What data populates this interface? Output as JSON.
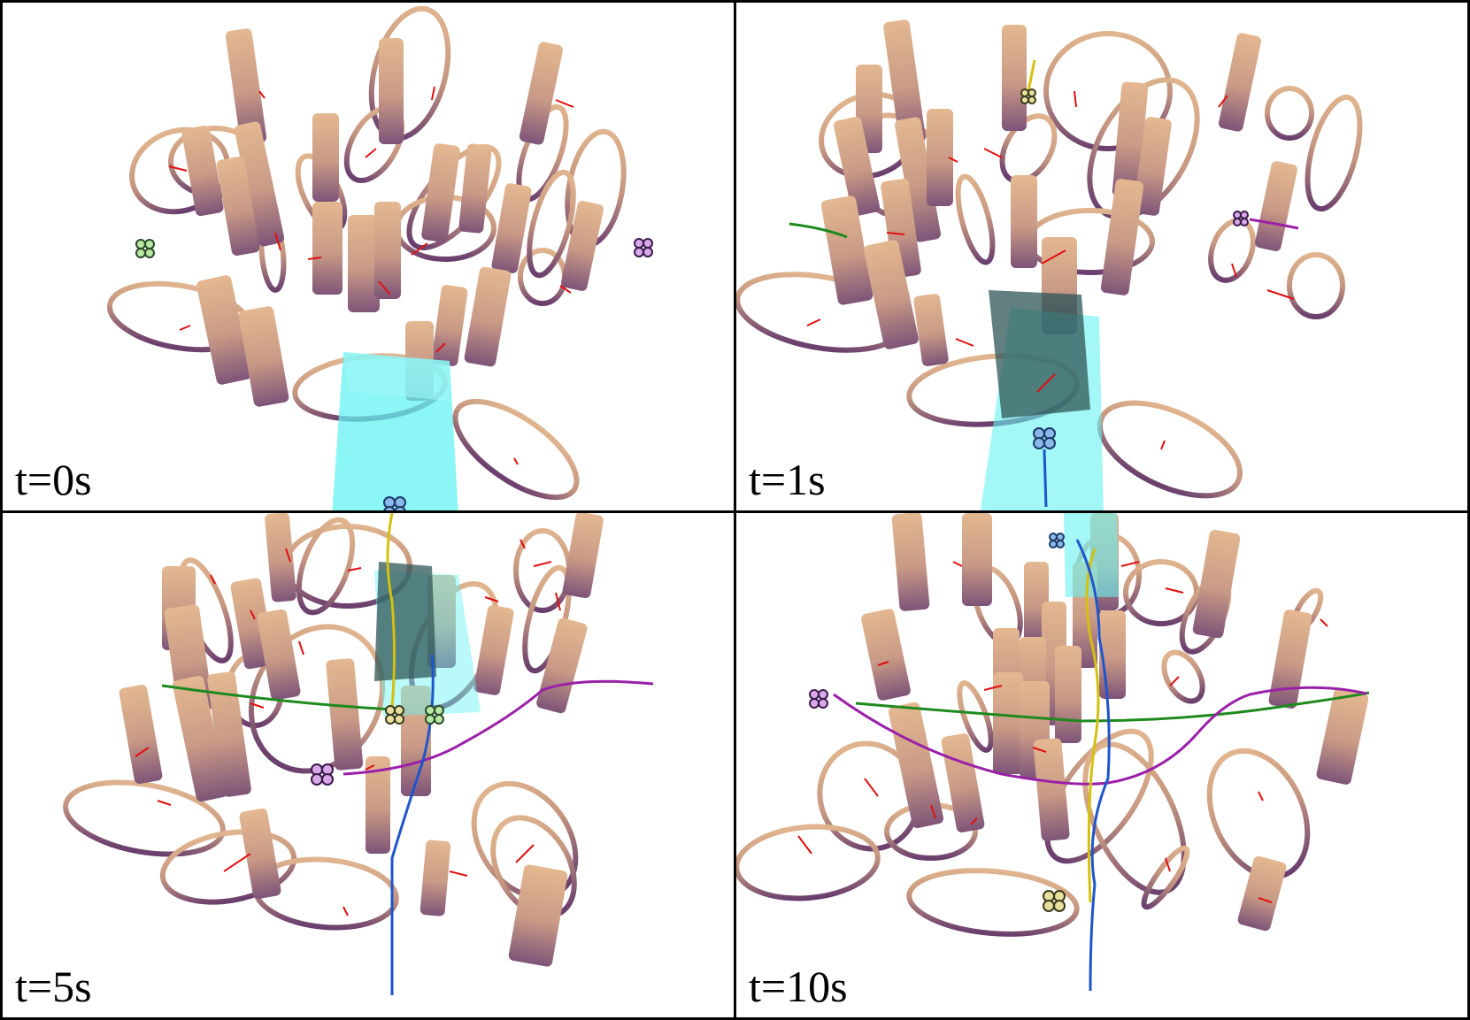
{
  "panels": [
    {
      "label": "t=0s"
    },
    {
      "label": "t=1s"
    },
    {
      "label": "t=5s"
    },
    {
      "label": "t=10s"
    }
  ],
  "colors": {
    "pillar_top": "#e0b48e",
    "pillar_bottom": "#7e5478",
    "ring_top": "#e0b48e",
    "ring_bottom": "#6a3f6e",
    "arrow": "#e01010",
    "fov_cyan": "#66f2f2",
    "fov_dark": "#2f5555",
    "traj_blue": "#1f55cc",
    "traj_green": "#1e8a1e",
    "traj_purple": "#9a20a8",
    "traj_yellow": "#d4c010"
  },
  "icons": [
    "drone-icon"
  ]
}
